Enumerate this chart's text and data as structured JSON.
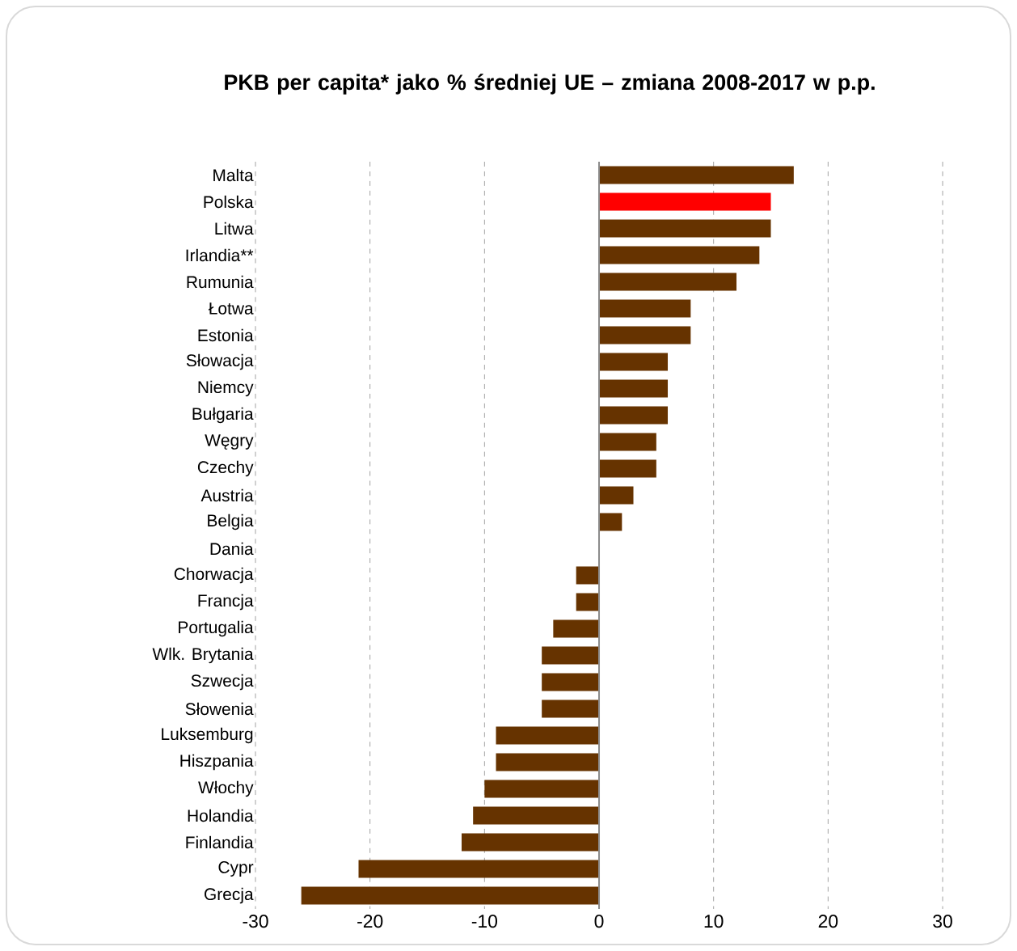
{
  "chart_data": {
    "type": "bar",
    "orientation": "horizontal",
    "title": "PKB per capita* jako % średniej UE – zmiana 2008-2017 w p.p.",
    "categories": [
      "Malta",
      "Polska",
      "Litwa",
      "Irlandia**",
      "Rumunia",
      "Łotwa",
      "Estonia",
      "Słowacja",
      "Niemcy",
      "Bułgaria",
      "Węgry",
      "Czechy",
      "Austria",
      "Belgia",
      "Dania",
      "Chorwacja",
      "Francja",
      "Portugalia",
      "Wlk. Brytania",
      "Szwecja",
      "Słowenia",
      "Luksemburg",
      "Hiszpania",
      "Włochy",
      "Holandia",
      "Finlandia",
      "Cypr",
      "Grecja"
    ],
    "values": [
      17,
      15,
      15,
      14,
      12,
      8,
      8,
      6,
      6,
      6,
      5,
      5,
      3,
      2,
      0,
      -2,
      -2,
      -4,
      -5,
      -5,
      -5,
      -9,
      -9,
      -10,
      -11,
      -12,
      -21,
      -26
    ],
    "colors": [
      "#663300",
      "#ff0000",
      "#663300",
      "#663300",
      "#663300",
      "#663300",
      "#663300",
      "#663300",
      "#663300",
      "#663300",
      "#663300",
      "#663300",
      "#663300",
      "#663300",
      "#663300",
      "#663300",
      "#663300",
      "#663300",
      "#663300",
      "#663300",
      "#663300",
      "#663300",
      "#663300",
      "#663300",
      "#663300",
      "#663300",
      "#663300",
      "#663300"
    ],
    "xlim": [
      -30,
      30
    ],
    "xticks": [
      -30,
      -20,
      -10,
      0,
      10,
      20,
      30
    ],
    "grid": "x"
  }
}
